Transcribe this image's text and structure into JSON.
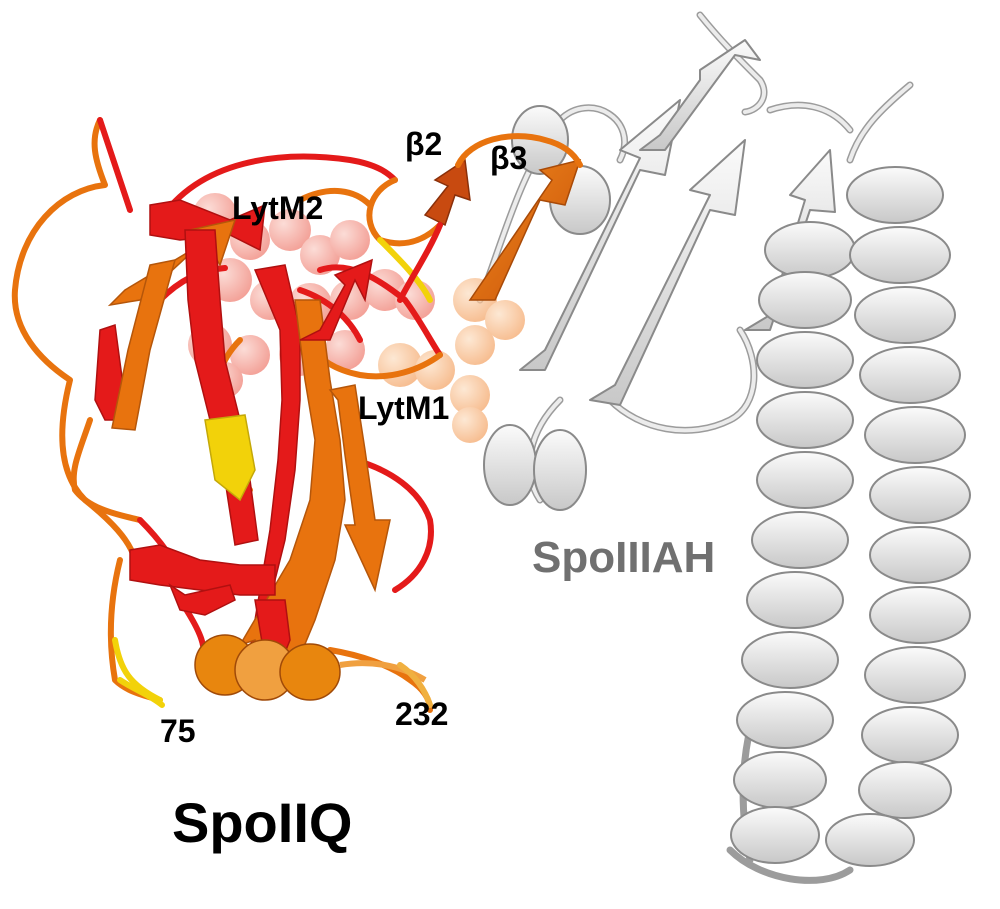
{
  "labels": {
    "beta2": "β2",
    "beta3": "β3",
    "lytm2": "LytM2",
    "lytm1": "LytM1",
    "spoiiiah": "SpoIIIAH",
    "res_start": "75",
    "res_end": "232",
    "spoiiq": "SpoIIQ"
  },
  "colors": {
    "spoiiq_red": "#e41a1a",
    "spoiiq_orange": "#e8730e",
    "spoiiq_yellow": "#f2d20a",
    "spoiiiah_gray": "#e6e6e6",
    "spheres_red": "#f08a80",
    "spheres_orange": "#f7b07a"
  }
}
